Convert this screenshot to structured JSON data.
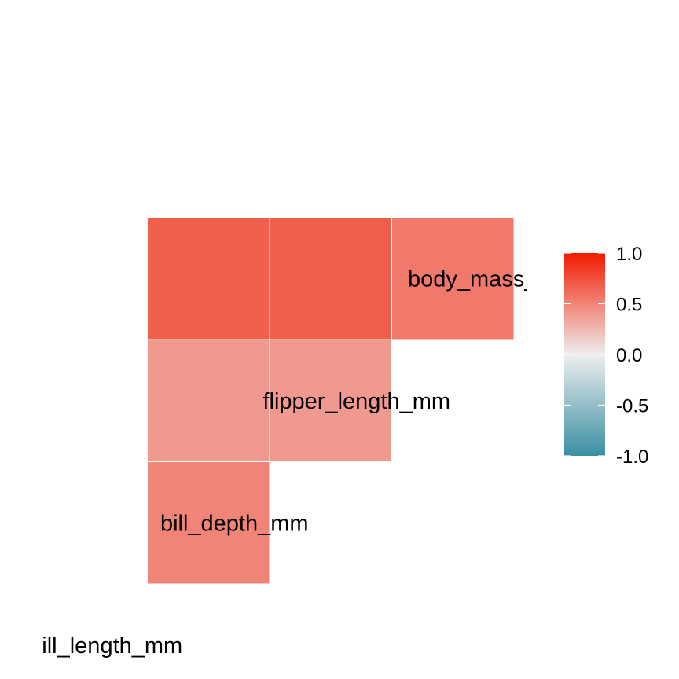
{
  "chart_data": {
    "type": "heatmap",
    "layout": "lower-triangle correlation matrix",
    "diagonal_labels": [
      {
        "var": "bill_length_mm",
        "text": "ill_length_mm"
      },
      {
        "var": "bill_depth_mm",
        "text": "bill_depth_mm"
      },
      {
        "var": "flipper_length_mm",
        "text": "flipper_length_mm"
      },
      {
        "var": "body_mass_g",
        "text": "body_mass_g"
      }
    ],
    "cells": [
      {
        "row": "bill_depth_mm",
        "col": "bill_length_mm",
        "value": 0.5
      },
      {
        "row": "flipper_length_mm",
        "col": "bill_length_mm",
        "value": 0.4
      },
      {
        "row": "flipper_length_mm",
        "col": "bill_depth_mm",
        "value": 0.4
      },
      {
        "row": "body_mass_g",
        "col": "bill_length_mm",
        "value": 0.68
      },
      {
        "row": "body_mass_g",
        "col": "bill_depth_mm",
        "value": 0.68
      },
      {
        "row": "body_mass_g",
        "col": "flipper_length_mm",
        "value": 0.55
      }
    ],
    "legend": {
      "placement": "right",
      "limits": [
        -1,
        1
      ],
      "ticks": [
        1.0,
        0.5,
        0.0,
        -0.5,
        -1.0
      ],
      "tick_labels": [
        "1.0",
        "0.5",
        "0.0",
        "-0.5",
        "-1.0"
      ],
      "colors": {
        "low": "#3A8FA3",
        "mid": "#EEEEEE",
        "high": "#F21A00"
      }
    },
    "title": "",
    "xlabel": "",
    "ylabel": "",
    "grid": false
  }
}
